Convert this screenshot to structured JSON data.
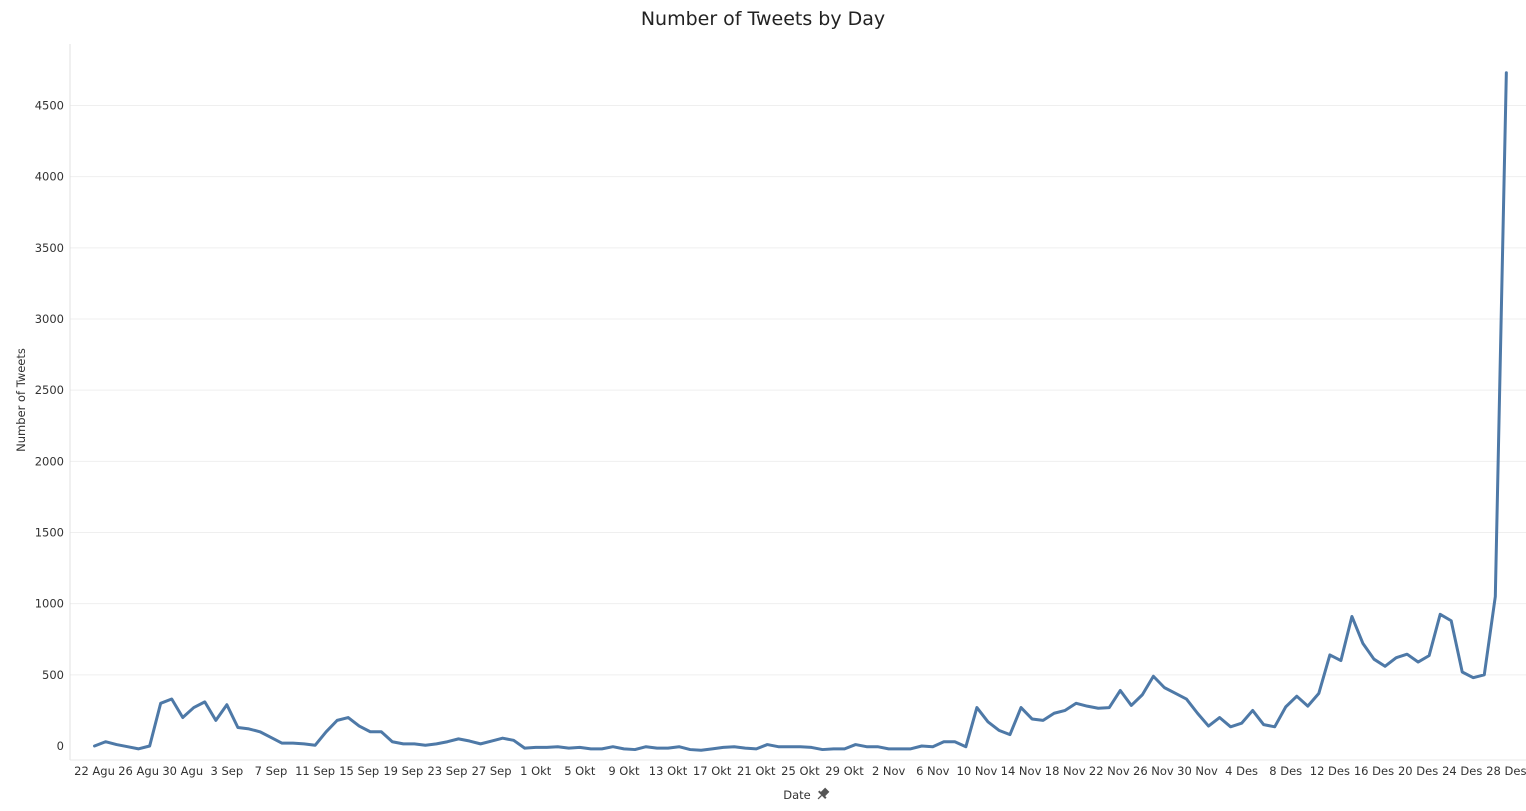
{
  "chart_data": {
    "type": "line",
    "title": "Number of Tweets by Day",
    "xlabel": "Date",
    "ylabel": "Number of Tweets",
    "ylim": [
      -50,
      4850
    ],
    "yticks": [
      0,
      500,
      1000,
      1500,
      2000,
      2500,
      3000,
      3500,
      4000,
      4500
    ],
    "grid": true,
    "line_color": "#4e79a7",
    "x_tick_labels": [
      "22 Agu",
      "26 Agu",
      "30 Agu",
      "3 Sep",
      "7 Sep",
      "11 Sep",
      "15 Sep",
      "19 Sep",
      "23 Sep",
      "27 Sep",
      "1 Okt",
      "5 Okt",
      "9 Okt",
      "13 Okt",
      "17 Okt",
      "21 Okt",
      "25 Okt",
      "29 Okt",
      "2 Nov",
      "6 Nov",
      "10 Nov",
      "14 Nov",
      "18 Nov",
      "22 Nov",
      "26 Nov",
      "30 Nov",
      "4 Des",
      "8 Des",
      "12 Des",
      "16 Des",
      "20 Des",
      "24 Des",
      "28 Des"
    ],
    "x_tick_step_days": 4,
    "values": [
      0,
      30,
      10,
      -5,
      -20,
      0,
      300,
      330,
      200,
      270,
      310,
      180,
      290,
      130,
      120,
      100,
      60,
      20,
      20,
      15,
      5,
      100,
      180,
      200,
      140,
      100,
      100,
      30,
      15,
      15,
      5,
      15,
      30,
      50,
      35,
      15,
      35,
      55,
      40,
      -15,
      -10,
      -10,
      -5,
      -15,
      -10,
      -20,
      -20,
      -5,
      -20,
      -25,
      -5,
      -15,
      -15,
      -5,
      -25,
      -30,
      -20,
      -10,
      -5,
      -15,
      -20,
      10,
      -5,
      -5,
      -5,
      -10,
      -25,
      -20,
      -20,
      10,
      -5,
      -5,
      -20,
      -20,
      -20,
      0,
      -5,
      30,
      30,
      -5,
      270,
      170,
      110,
      80,
      270,
      190,
      180,
      230,
      250,
      300,
      280,
      265,
      270,
      390,
      285,
      360,
      490,
      410,
      370,
      330,
      230,
      140,
      200,
      135,
      160,
      250,
      150,
      135,
      275,
      350,
      280,
      370,
      640,
      600,
      910,
      720,
      610,
      560,
      620,
      645,
      590,
      635,
      925,
      880,
      520,
      480,
      500,
      1050,
      4730
    ]
  }
}
